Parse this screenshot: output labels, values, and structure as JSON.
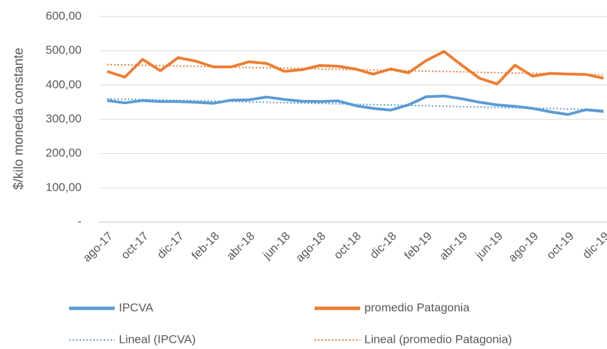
{
  "chart_data": {
    "type": "line",
    "y_label": "$/kilo moneda constante",
    "categories": [
      "ago-17",
      null,
      "oct-17",
      null,
      "dic-17",
      null,
      "feb-18",
      null,
      "abr-18",
      null,
      "jun-18",
      null,
      "ago-18",
      null,
      "oct-18",
      null,
      "dic-18",
      null,
      "feb-19",
      null,
      "abr-19",
      null,
      "jun-19",
      null,
      "ago-19",
      null,
      "oct-19",
      null,
      "dic-19"
    ],
    "series": [
      {
        "name": "IPCVA",
        "color": "#5b9bd5",
        "dash": "solid",
        "values": [
          355,
          348,
          355,
          352,
          352,
          350,
          347,
          356,
          357,
          365,
          358,
          353,
          352,
          354,
          340,
          332,
          327,
          342,
          366,
          368,
          360,
          350,
          342,
          338,
          332,
          322,
          314,
          328,
          323
        ]
      },
      {
        "name": "promedio Patagonia",
        "color": "#ed7d31",
        "dash": "solid",
        "values": [
          440,
          423,
          475,
          442,
          480,
          470,
          453,
          453,
          468,
          463,
          440,
          445,
          457,
          455,
          447,
          432,
          447,
          436,
          472,
          498,
          458,
          420,
          403,
          458,
          426,
          434,
          432,
          431,
          420
        ]
      },
      {
        "name": "Lineal (IPCVA)",
        "color": "#5b9bd5",
        "dash": "dotted",
        "values": [
          360,
          358.9,
          357.7,
          356.6,
          355.4,
          354.3,
          353.1,
          352,
          350.9,
          349.7,
          348.6,
          347.4,
          346.3,
          345.1,
          344,
          342.9,
          341.7,
          340.6,
          339.4,
          338.3,
          337.1,
          336,
          334.9,
          333.7,
          332.6,
          331.4,
          330.3,
          329.1,
          328
        ]
      },
      {
        "name": "Lineal (promedio Patagonia)",
        "color": "#ed7d31",
        "dash": "dotted",
        "values": [
          460,
          458.9,
          457.9,
          456.8,
          455.7,
          454.6,
          453.6,
          452.5,
          451.4,
          450.4,
          449.3,
          448.2,
          447.1,
          446.1,
          445,
          443.9,
          442.9,
          441.8,
          440.7,
          439.6,
          438.6,
          437.5,
          436.4,
          435.4,
          434.3,
          433.2,
          432.1,
          431.1,
          430
        ]
      }
    ],
    "ylim": [
      0,
      600
    ],
    "yticks": [
      {
        "value": 0,
        "label": "-"
      },
      {
        "value": 100,
        "label": "100,00"
      },
      {
        "value": 200,
        "label": "200,00"
      },
      {
        "value": 300,
        "label": "300,00"
      },
      {
        "value": 400,
        "label": "400,00"
      },
      {
        "value": 500,
        "label": "500,00"
      },
      {
        "value": 600,
        "label": "600,00"
      }
    ],
    "grid": true
  }
}
